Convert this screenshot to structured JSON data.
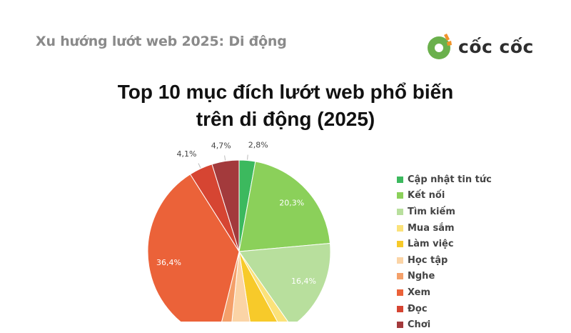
{
  "header": {
    "subtitle": "Xu hướng lướt web 2025: Di động",
    "brand_name": "cốc cốc",
    "brand_icon": "coccoc-logo-icon",
    "brand_colors": {
      "green": "#6ab04c",
      "orange": "#f0932b"
    }
  },
  "chart_data": {
    "type": "pie",
    "title_lines": [
      "Top 10 mục đích lướt web phổ biến",
      "trên di động (2025)"
    ],
    "categories": [
      "Cập nhật tin tức",
      "Kết nối",
      "Tìm kiếm",
      "Mua sắm",
      "Làm việc",
      "Học tập",
      "Nghe",
      "Xem",
      "Đọc",
      "Chơi"
    ],
    "values": [
      2.8,
      20.3,
      16.4,
      1.7,
      5.4,
      4.0,
      2.2,
      36.4,
      4.1,
      4.7
    ],
    "labels": [
      "2,8%",
      "20,3%",
      "16,4%",
      "",
      "",
      "",
      "",
      "36,4%",
      "4,1%",
      "4,7%"
    ],
    "colors": [
      "#3cb95e",
      "#8bd05a",
      "#b8df9d",
      "#fbe27a",
      "#f7ca2a",
      "#fbd4a6",
      "#f4a06a",
      "#eb6239",
      "#d64532",
      "#a33a3c"
    ],
    "legend_position": "right"
  }
}
